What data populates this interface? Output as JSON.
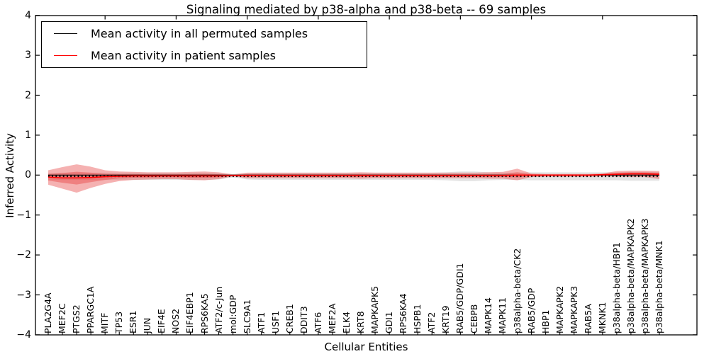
{
  "chart_data": {
    "type": "line",
    "title": "Signaling mediated by p38-alpha and p38-beta -- 69 samples",
    "xlabel": "Cellular Entities",
    "ylabel": "Inferred Activity",
    "ylim": [
      -4,
      4
    ],
    "grid": false,
    "legend_position": "upper left",
    "ytick_values": [
      4,
      3,
      2,
      1,
      0,
      -1,
      -2,
      -3,
      -4
    ],
    "ytick_labels": [
      "4",
      "3",
      "2",
      "1",
      "0",
      "−1",
      "−2",
      "−3",
      "−4"
    ],
    "categories": [
      "PLA2G4A",
      "MEF2C",
      "PTGS2",
      "PPARGC1A",
      "MITF",
      "TP53",
      "ESR1",
      "JUN",
      "EIF4E",
      "NOS2",
      "EIF4EBP1",
      "RPS6KA5",
      "ATF2/c-Jun",
      "mol:GDP",
      "SLC9A1",
      "ATF1",
      "USF1",
      "CREB1",
      "DDIT3",
      "ATF6",
      "MEF2A",
      "ELK4",
      "KRT8",
      "MAPKAPK5",
      "GDI1",
      "RPS6KA4",
      "HSPB1",
      "ATF2",
      "KRT19",
      "RAB5/GDP/GDI1",
      "CEBPB",
      "MAPK14",
      "MAPK11",
      "p38alpha-beta/CK2",
      "RAB5/GDP",
      "HBP1",
      "MAPKAPK2",
      "MAPKAPK3",
      "RAB5A",
      "MKNK1",
      "p38alpha-beta/HBP1",
      "p38alpha-beta/MAPKAPK2",
      "p38alpha-beta/MAPKAPK3",
      "p38alpha-beta/MNK1"
    ],
    "series": [
      {
        "name": "Mean activity in all permuted samples",
        "color": "#000000",
        "values": [
          -0.03,
          -0.03,
          -0.03,
          -0.03,
          -0.03,
          -0.03,
          -0.03,
          -0.03,
          -0.03,
          -0.03,
          -0.03,
          -0.03,
          -0.03,
          -0.03,
          -0.03,
          -0.03,
          -0.03,
          -0.03,
          -0.03,
          -0.03,
          -0.03,
          -0.03,
          -0.03,
          -0.03,
          -0.03,
          -0.03,
          -0.03,
          -0.03,
          -0.03,
          -0.03,
          -0.03,
          -0.03,
          -0.03,
          -0.03,
          -0.03,
          -0.03,
          -0.03,
          -0.03,
          -0.03,
          -0.03,
          -0.03,
          -0.03,
          -0.03,
          -0.03
        ],
        "band_hi": [
          0.05,
          0.06,
          0.06,
          0.06,
          0.06,
          0.06,
          0.06,
          0.06,
          0.06,
          0.06,
          0.06,
          0.06,
          0.05,
          0.0,
          0.05,
          0.06,
          0.06,
          0.06,
          0.06,
          0.06,
          0.06,
          0.06,
          0.06,
          0.06,
          0.06,
          0.06,
          0.06,
          0.06,
          0.07,
          0.09,
          0.09,
          0.07,
          0.06,
          0.06,
          0.07,
          0.07,
          0.07,
          0.07,
          0.07,
          0.07,
          0.07,
          0.08,
          0.08,
          0.08
        ],
        "band_lo": [
          -0.11,
          -0.12,
          -0.12,
          -0.12,
          -0.12,
          -0.12,
          -0.12,
          -0.12,
          -0.12,
          -0.12,
          -0.12,
          -0.12,
          -0.11,
          -0.06,
          -0.11,
          -0.12,
          -0.12,
          -0.12,
          -0.12,
          -0.12,
          -0.12,
          -0.12,
          -0.12,
          -0.12,
          -0.12,
          -0.12,
          -0.12,
          -0.12,
          -0.13,
          -0.15,
          -0.15,
          -0.13,
          -0.12,
          -0.12,
          -0.13,
          -0.13,
          -0.13,
          -0.13,
          -0.13,
          -0.13,
          -0.13,
          -0.14,
          -0.14,
          -0.14
        ]
      },
      {
        "name": "Mean activity in patient samples",
        "color": "#ff0000",
        "values": [
          -0.05,
          -0.07,
          -0.07,
          -0.06,
          -0.04,
          -0.03,
          -0.02,
          -0.02,
          -0.02,
          -0.02,
          -0.02,
          -0.02,
          -0.02,
          -0.01,
          -0.01,
          -0.01,
          -0.01,
          -0.01,
          -0.01,
          -0.01,
          -0.01,
          -0.01,
          -0.01,
          -0.01,
          -0.01,
          -0.01,
          -0.01,
          -0.01,
          -0.01,
          -0.01,
          -0.01,
          -0.01,
          -0.01,
          0.0,
          0.0,
          0.0,
          0.0,
          0.0,
          0.0,
          0.01,
          0.02,
          0.03,
          0.03,
          0.02
        ],
        "band_hi": [
          0.12,
          0.2,
          0.27,
          0.21,
          0.12,
          0.09,
          0.08,
          0.07,
          0.07,
          0.07,
          0.08,
          0.09,
          0.07,
          0.02,
          0.06,
          0.06,
          0.06,
          0.06,
          0.06,
          0.06,
          0.06,
          0.06,
          0.07,
          0.06,
          0.06,
          0.06,
          0.06,
          0.06,
          0.06,
          0.06,
          0.06,
          0.07,
          0.08,
          0.16,
          0.04,
          0.03,
          0.03,
          0.03,
          0.03,
          0.04,
          0.1,
          0.11,
          0.11,
          0.1
        ],
        "band_lo": [
          -0.24,
          -0.34,
          -0.44,
          -0.32,
          -0.22,
          -0.15,
          -0.12,
          -0.11,
          -0.1,
          -0.1,
          -0.12,
          -0.13,
          -0.1,
          -0.03,
          -0.08,
          -0.08,
          -0.08,
          -0.08,
          -0.08,
          -0.08,
          -0.08,
          -0.08,
          -0.09,
          -0.08,
          -0.08,
          -0.08,
          -0.08,
          -0.08,
          -0.08,
          -0.08,
          -0.08,
          -0.09,
          -0.09,
          -0.13,
          -0.05,
          -0.04,
          -0.04,
          -0.04,
          -0.04,
          -0.03,
          -0.04,
          -0.05,
          -0.05,
          -0.1
        ],
        "inner_band_scale": 0.45
      }
    ],
    "colors": {
      "permuted_line": "#000000",
      "patient_line": "#ff0000",
      "permuted_band": "#cccccc",
      "patient_band": "#e84444",
      "axis": "#000000"
    }
  },
  "legend": {
    "items": [
      {
        "label": "Mean activity in all permuted samples"
      },
      {
        "label": "Mean activity in patient samples"
      }
    ]
  }
}
